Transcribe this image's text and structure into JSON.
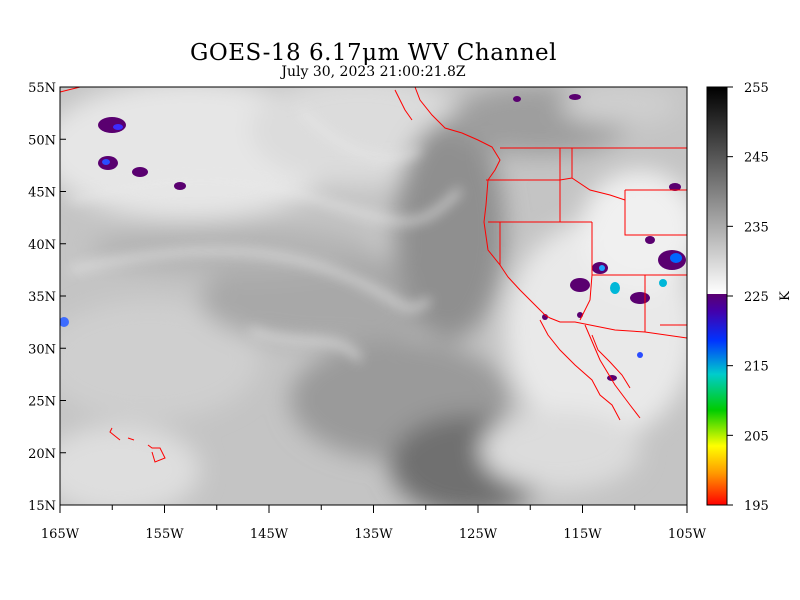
{
  "header": {
    "title": "GOES-18  6.17μm WV Channel",
    "subtitle": "July 30,  2023 21:00:21.8Z"
  },
  "map": {
    "lon_ticks": [
      "165W",
      "155W",
      "145W",
      "135W",
      "125W",
      "115W",
      "105W"
    ],
    "lon_values": [
      -165,
      -155,
      -145,
      -135,
      -125,
      -115,
      -105
    ],
    "lat_ticks": [
      "55N",
      "50N",
      "45N",
      "40N",
      "35N",
      "30N",
      "25N",
      "20N",
      "15N"
    ],
    "lat_values": [
      55,
      50,
      45,
      40,
      35,
      30,
      25,
      20,
      15
    ],
    "lon_range": [
      -165,
      -105
    ],
    "lat_range": [
      15,
      55
    ],
    "boundary_color": "#ff0000"
  },
  "colorbar": {
    "ticks": [
      "255",
      "245",
      "235",
      "225",
      "215",
      "205",
      "195"
    ],
    "tick_values": [
      255,
      245,
      235,
      225,
      215,
      205,
      195
    ],
    "range": [
      195,
      255
    ],
    "unit": "K"
  }
}
